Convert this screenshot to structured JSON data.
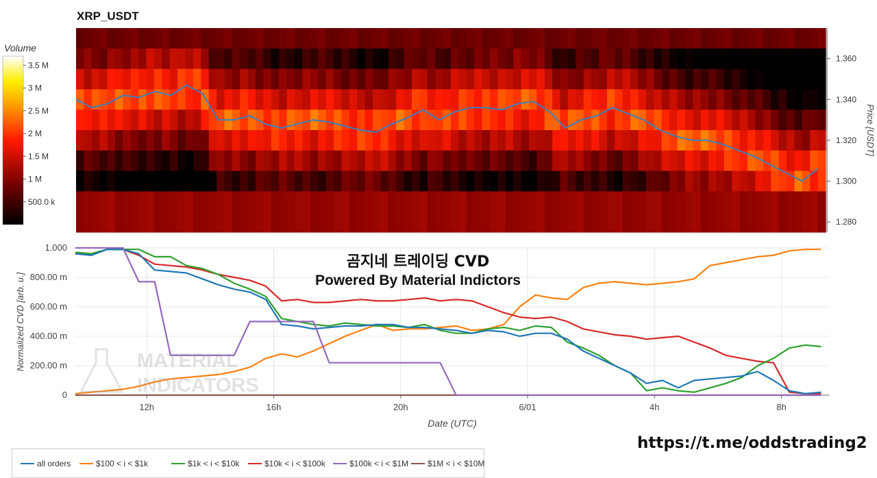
{
  "title": "XRP_USDT",
  "overlay": {
    "line1": "곰지네 트레이딩 CVD",
    "line2": "Powered By Material Indictors"
  },
  "watermark": {
    "line1": "MATERIAL",
    "line2": "INDICATORS"
  },
  "url": "https://t.me/oddstrading2",
  "colors": {
    "all_orders": "#1f77b4",
    "b100_1k": "#ff7f0e",
    "b1k_10k": "#2ca02c",
    "b10k_100k": "#d62728",
    "b100k_1m": "#9467bd",
    "b1m_10m": "#8c564b",
    "price_line": "#3a7fc0"
  },
  "legend": [
    {
      "label": "all orders",
      "key": "all_orders"
    },
    {
      "label": "$100 < i < $1k",
      "key": "b100_1k"
    },
    {
      "label": "$1k < i < $10k",
      "key": "b1k_10k"
    },
    {
      "label": "$10k < i < $100k",
      "key": "b10k_100k"
    },
    {
      "label": "$100k < i < $1M",
      "key": "b100k_1m"
    },
    {
      "label": "$1M < i < $10M",
      "key": "b1m_10m"
    }
  ],
  "chart_data": [
    {
      "type": "heatmap",
      "colorbar": {
        "label": "Volume",
        "ticks": [
          "500.0 k",
          "1 M",
          "1.5 M",
          "2 M",
          "2.5 M",
          "3 M",
          "3.5 M"
        ],
        "tick_values": [
          500000,
          1000000,
          1500000,
          2000000,
          2500000,
          3000000,
          3500000
        ],
        "range": [
          0,
          3700000
        ]
      },
      "y_axis": {
        "label": "Price [USDT]",
        "ticks": [
          "1.280",
          "1.300",
          "1.320",
          "1.340",
          "1.360"
        ],
        "tick_values": [
          1.28,
          1.3,
          1.32,
          1.34,
          1.36
        ],
        "range": [
          1.275,
          1.375
        ]
      },
      "price_series": {
        "time_h": [
          0,
          0.5,
          1,
          1.5,
          2,
          2.5,
          3,
          3.5,
          4,
          4.5,
          5,
          5.5,
          6,
          6.5,
          7,
          7.5,
          8,
          8.5,
          9,
          9.5,
          10,
          10.5,
          11,
          11.5,
          12,
          12.5,
          13,
          13.5,
          14,
          14.5,
          15,
          15.5,
          16,
          16.5,
          17,
          17.5,
          18,
          18.5,
          19,
          19.5,
          20,
          20.5,
          21,
          21.5,
          22,
          22.5,
          23,
          23.5
        ],
        "price": [
          1.34,
          1.336,
          1.338,
          1.342,
          1.341,
          1.344,
          1.342,
          1.347,
          1.343,
          1.33,
          1.33,
          1.332,
          1.328,
          1.326,
          1.328,
          1.33,
          1.329,
          1.327,
          1.325,
          1.324,
          1.328,
          1.331,
          1.335,
          1.33,
          1.334,
          1.336,
          1.336,
          1.335,
          1.338,
          1.339,
          1.334,
          1.326,
          1.33,
          1.332,
          1.336,
          1.333,
          1.33,
          1.325,
          1.322,
          1.32,
          1.32,
          1.318,
          1.315,
          1.312,
          1.308,
          1.304,
          1.3,
          1.306
        ]
      }
    },
    {
      "type": "line",
      "x_axis": {
        "label": "Date (UTC)",
        "ticks": [
          "12h",
          "16h",
          "20h",
          "6/01",
          "4h",
          "8h"
        ],
        "tick_values": [
          2.25,
          6.25,
          10.25,
          14.25,
          18.25,
          22.25
        ],
        "range": [
          0,
          23.75
        ]
      },
      "y_axis": {
        "label": "Normalized CVD [arb. u.]",
        "ticks": [
          "0",
          "200.00 m",
          "400.00 m",
          "600.00 m",
          "800.00 m",
          "1.000"
        ],
        "tick_values": [
          0,
          0.2,
          0.4,
          0.6,
          0.8,
          1.0
        ],
        "range": [
          0,
          1.0
        ]
      },
      "x": [
        0,
        0.5,
        1,
        1.5,
        2,
        2.5,
        3,
        3.5,
        4,
        4.5,
        5,
        5.5,
        6,
        6.5,
        7,
        7.5,
        8,
        8.5,
        9,
        9.5,
        10,
        10.5,
        11,
        11.5,
        12,
        12.5,
        13,
        13.5,
        14,
        14.5,
        15,
        15.5,
        16,
        16.5,
        17,
        17.5,
        18,
        18.5,
        19,
        19.5,
        20,
        20.5,
        21,
        21.5,
        22,
        22.5,
        23,
        23.5
      ],
      "series": [
        {
          "name": "all orders",
          "key": "all_orders",
          "values": [
            0.96,
            0.95,
            0.99,
            0.99,
            0.96,
            0.85,
            0.84,
            0.83,
            0.79,
            0.75,
            0.72,
            0.7,
            0.65,
            0.48,
            0.47,
            0.45,
            0.46,
            0.47,
            0.47,
            0.48,
            0.48,
            0.46,
            0.46,
            0.45,
            0.44,
            0.42,
            0.44,
            0.43,
            0.4,
            0.42,
            0.42,
            0.38,
            0.3,
            0.25,
            0.2,
            0.15,
            0.08,
            0.1,
            0.05,
            0.1,
            0.11,
            0.12,
            0.13,
            0.16,
            0.1,
            0.03,
            0.01,
            0.02
          ]
        },
        {
          "name": "$100 < i < $1k",
          "key": "b100_1k",
          "values": [
            0.01,
            0.02,
            0.03,
            0.04,
            0.06,
            0.09,
            0.11,
            0.12,
            0.13,
            0.14,
            0.16,
            0.19,
            0.25,
            0.28,
            0.26,
            0.3,
            0.35,
            0.4,
            0.44,
            0.48,
            0.44,
            0.45,
            0.45,
            0.46,
            0.47,
            0.44,
            0.45,
            0.48,
            0.6,
            0.68,
            0.66,
            0.65,
            0.73,
            0.76,
            0.77,
            0.76,
            0.75,
            0.76,
            0.77,
            0.79,
            0.88,
            0.9,
            0.92,
            0.94,
            0.95,
            0.98,
            0.99,
            0.99
          ]
        },
        {
          "name": "$1k < i < $10k",
          "key": "b1k_10k",
          "values": [
            0.97,
            0.96,
            0.99,
            0.99,
            0.99,
            0.94,
            0.94,
            0.88,
            0.86,
            0.82,
            0.76,
            0.72,
            0.67,
            0.52,
            0.5,
            0.48,
            0.47,
            0.49,
            0.48,
            0.47,
            0.47,
            0.46,
            0.48,
            0.44,
            0.42,
            0.42,
            0.45,
            0.46,
            0.44,
            0.47,
            0.46,
            0.36,
            0.32,
            0.27,
            0.2,
            0.15,
            0.03,
            0.05,
            0.03,
            0.02,
            0.05,
            0.08,
            0.12,
            0.2,
            0.25,
            0.32,
            0.34,
            0.33
          ]
        },
        {
          "name": "$10k < i < $100k",
          "key": "b10k_100k",
          "values": [
            0.97,
            0.96,
            0.99,
            0.99,
            0.95,
            0.89,
            0.88,
            0.87,
            0.85,
            0.82,
            0.8,
            0.78,
            0.74,
            0.64,
            0.65,
            0.63,
            0.63,
            0.64,
            0.65,
            0.64,
            0.64,
            0.65,
            0.66,
            0.64,
            0.65,
            0.64,
            0.6,
            0.56,
            0.53,
            0.52,
            0.53,
            0.5,
            0.45,
            0.43,
            0.41,
            0.4,
            0.38,
            0.39,
            0.4,
            0.36,
            0.32,
            0.27,
            0.25,
            0.23,
            0.22,
            0.02,
            0.01,
            0.01
          ]
        },
        {
          "name": "$100k < i < $1M",
          "key": "b100k_1m",
          "values": [
            1.0,
            1.0,
            1.0,
            1.0,
            0.77,
            0.77,
            0.27,
            0.27,
            0.27,
            0.27,
            0.27,
            0.5,
            0.5,
            0.5,
            0.5,
            0.5,
            0.22,
            0.22,
            0.22,
            0.22,
            0.22,
            0.22,
            0.22,
            0.22,
            0.0,
            0.0,
            0.0,
            0.0,
            0.0,
            0.0,
            0.0,
            0.0,
            0.0,
            0.0,
            0.0,
            0.0,
            0.0,
            0.0,
            0.0,
            0.0,
            0.0,
            0.0,
            0.0,
            0.0,
            0.0,
            0.0,
            0.0,
            0.0
          ]
        },
        {
          "name": "$1M < i < $10M",
          "key": "b1m_10m",
          "values": [
            0.0,
            0.0,
            0.0,
            0.0,
            0.0,
            0.0,
            0.0,
            0.0,
            0.0,
            0.0,
            0.0,
            0.0,
            0.0,
            0.0,
            0.0,
            0.0,
            0.0,
            0.0,
            0.0,
            0.0,
            0.0,
            0.0,
            0.0,
            0.0,
            0.0,
            0.0,
            0.0,
            0.0,
            0.0,
            0.0,
            0.0,
            0.0,
            0.0,
            0.0,
            0.0,
            0.0,
            0.0,
            0.0,
            0.0,
            0.0,
            0.0,
            0.0,
            0.0,
            0.0,
            0.0,
            0.0,
            0.0,
            0.0
          ]
        }
      ]
    }
  ]
}
